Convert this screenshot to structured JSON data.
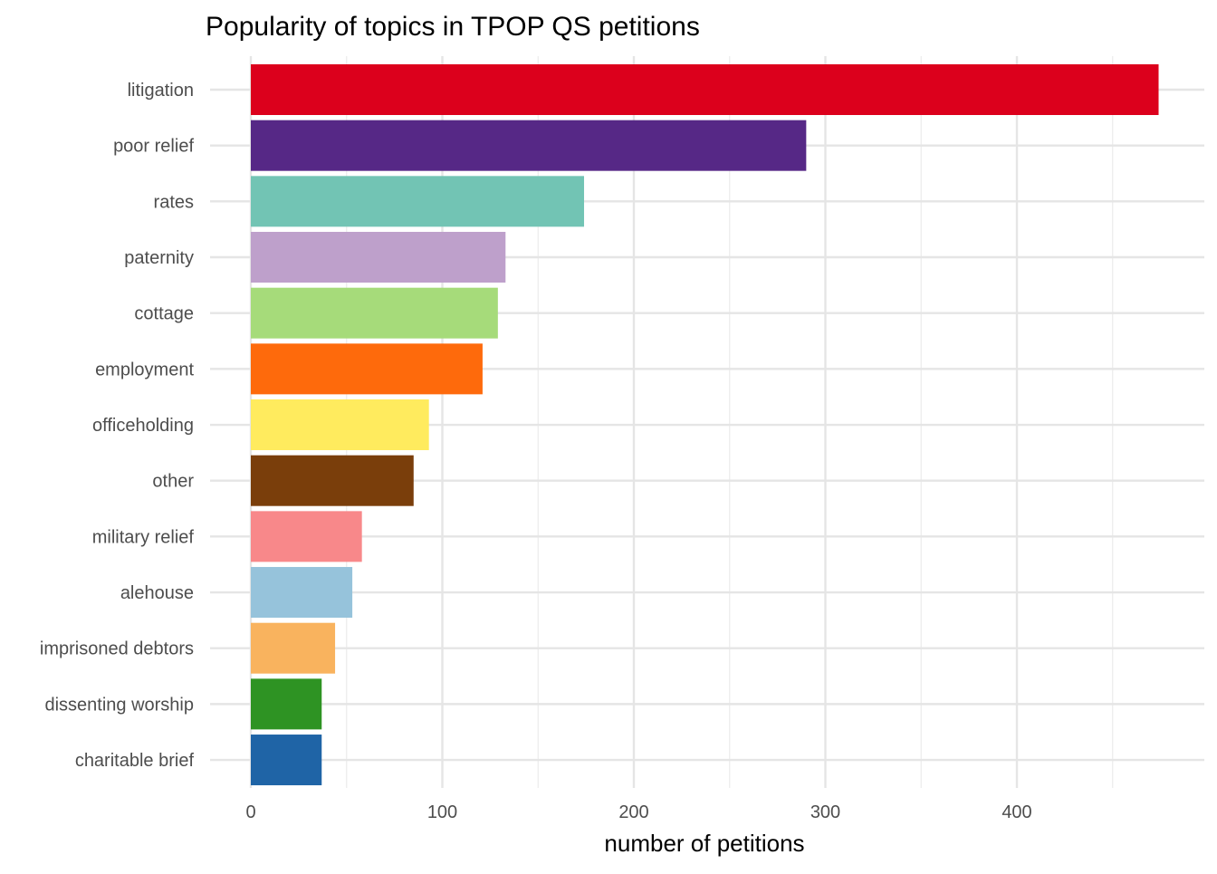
{
  "chart_data": {
    "type": "bar",
    "orientation": "horizontal",
    "title": "Popularity of topics in TPOP QS petitions",
    "xlabel": "number of petitions",
    "ylabel": "",
    "xlim": [
      0,
      475
    ],
    "xticks": [
      0,
      100,
      200,
      300,
      400
    ],
    "grid": true,
    "legend": "none",
    "categories": [
      "litigation",
      "poor relief",
      "rates",
      "paternity",
      "cottage",
      "employment",
      "officeholding",
      "other",
      "military relief",
      "alehouse",
      "imprisoned debtors",
      "dissenting worship",
      "charitable brief"
    ],
    "values": [
      474,
      290,
      174,
      133,
      129,
      121,
      93,
      85,
      58,
      53,
      44,
      37,
      37
    ],
    "colors": [
      "#DC001C",
      "#562886",
      "#72C4B4",
      "#BEA0CB",
      "#A6DB7A",
      "#FE6A0C",
      "#FFEB5E",
      "#7A3E0B",
      "#F8888A",
      "#96C3DB",
      "#F9B35E",
      "#2E9323",
      "#1F64A6"
    ]
  }
}
